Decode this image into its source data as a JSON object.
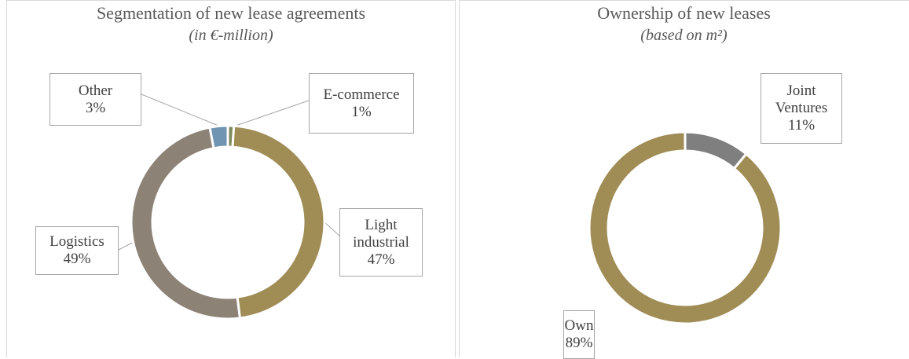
{
  "chart_data": [
    {
      "type": "donut",
      "title": "Segmentation of new lease agreements",
      "subtitle": "(in €-million)",
      "categories": [
        "E-commerce",
        "Light industrial",
        "Logistics",
        "Other"
      ],
      "values": [
        1,
        47,
        49,
        3
      ],
      "value_labels": [
        "1%",
        "47%",
        "49%",
        "3%"
      ],
      "colors": [
        "#7e8a5c",
        "#a08c55",
        "#8c8276",
        "#7095b3"
      ]
    },
    {
      "type": "donut",
      "title": "Ownership of new leases",
      "subtitle": "(based on m²)",
      "categories": [
        "Joint Ventures",
        "Own"
      ],
      "values": [
        11,
        89
      ],
      "value_labels": [
        "11%",
        "89%"
      ],
      "colors": [
        "#7f7f7f",
        "#a08c55"
      ]
    }
  ]
}
